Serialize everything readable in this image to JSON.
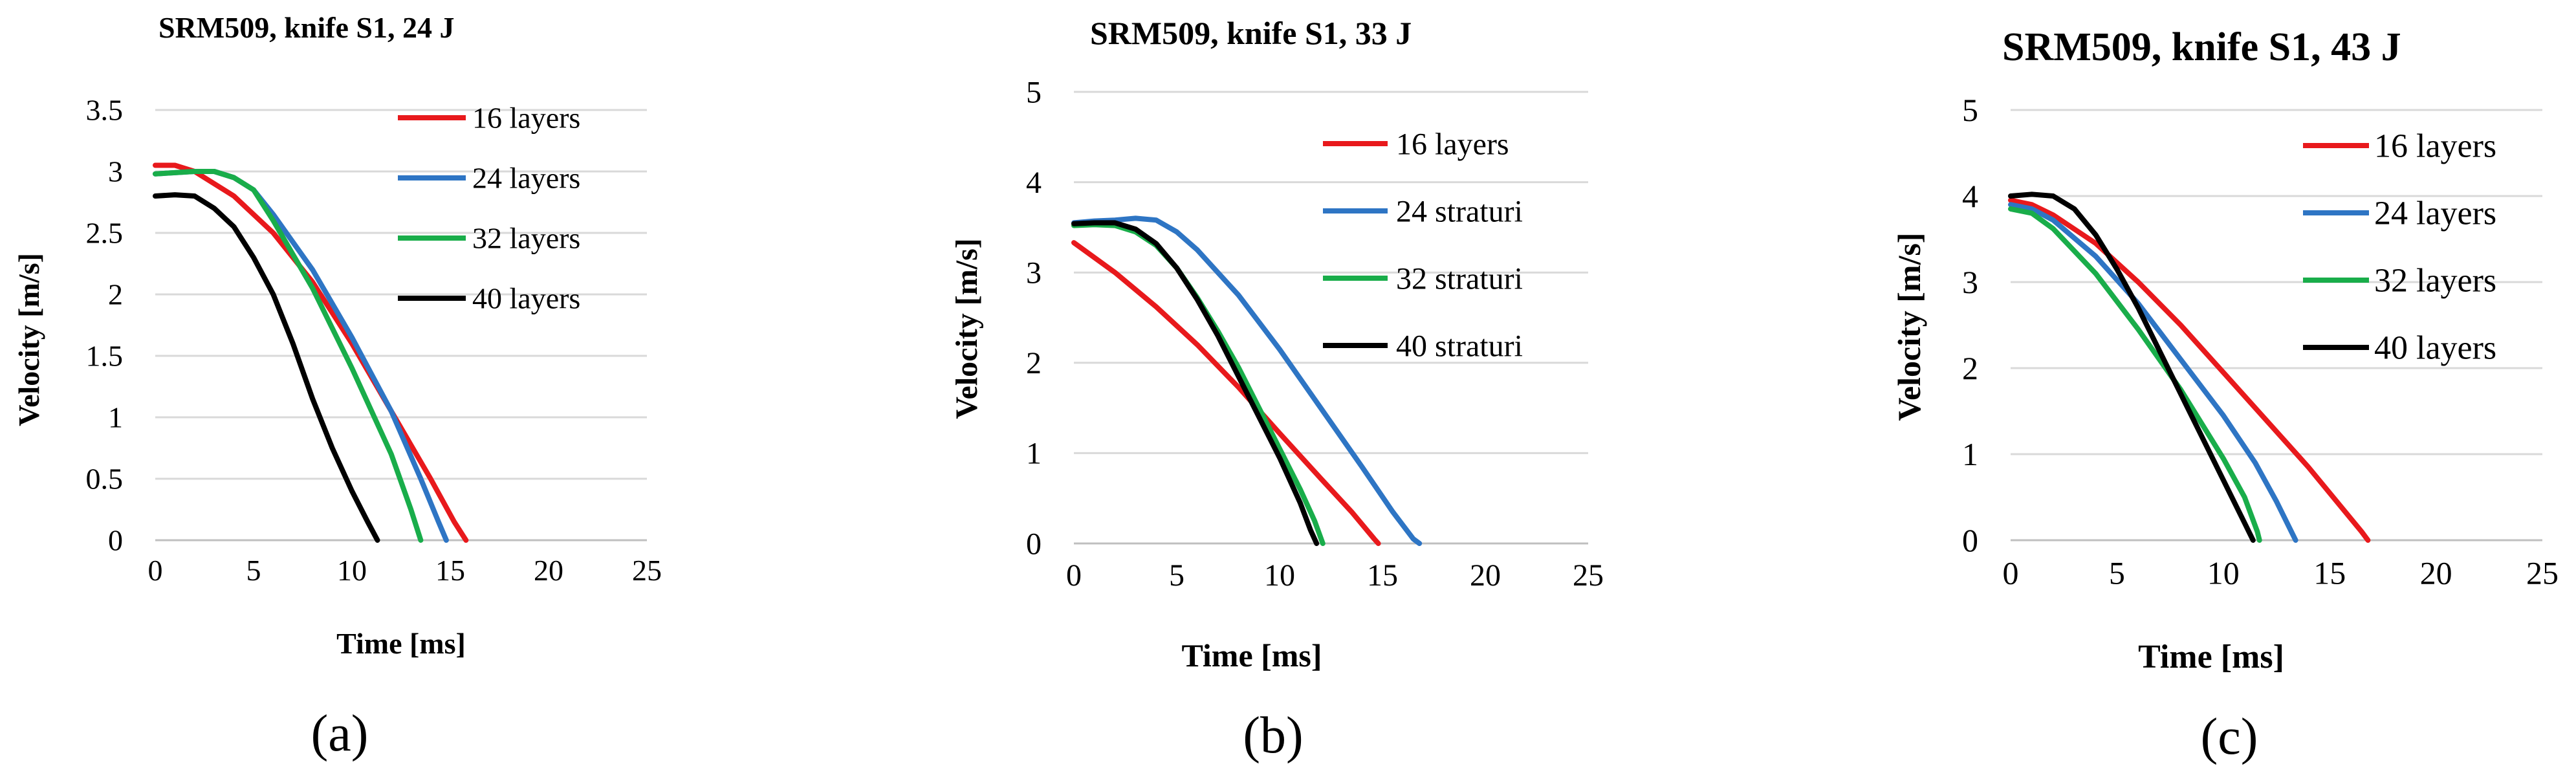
{
  "chart_data": [
    {
      "type": "line",
      "title": "SRM509, knife S1, 24 J",
      "xlabel": "Time [ms]",
      "ylabel": "Velocity [m/s]",
      "xlim": [
        0,
        25
      ],
      "ylim": [
        0,
        3.5
      ],
      "xticks": [
        "0",
        "5",
        "10",
        "15",
        "20",
        "25"
      ],
      "yticks": [
        "0",
        "0.5",
        "1",
        "1.5",
        "2",
        "2.5",
        "3",
        "3.5"
      ],
      "legend_position": "top-right",
      "panel_label": "(a)",
      "series": [
        {
          "name": "16 layers",
          "color": "#e8191c",
          "points": [
            [
              0,
              3.05
            ],
            [
              1,
              3.05
            ],
            [
              2,
              3.0
            ],
            [
              4,
              2.8
            ],
            [
              6,
              2.5
            ],
            [
              8,
              2.1
            ],
            [
              10,
              1.6
            ],
            [
              12,
              1.05
            ],
            [
              14,
              0.5
            ],
            [
              15.2,
              0.15
            ],
            [
              15.8,
              0
            ]
          ]
        },
        {
          "name": "24 layers",
          "color": "#2e75c4",
          "points": [
            [
              0,
              2.98
            ],
            [
              1,
              2.99
            ],
            [
              2,
              3.0
            ],
            [
              3,
              3.0
            ],
            [
              4,
              2.95
            ],
            [
              5,
              2.85
            ],
            [
              6,
              2.65
            ],
            [
              8,
              2.2
            ],
            [
              10,
              1.65
            ],
            [
              12,
              1.05
            ],
            [
              13.5,
              0.5
            ],
            [
              14.4,
              0.15
            ],
            [
              14.8,
              0
            ]
          ]
        },
        {
          "name": "32 layers",
          "color": "#19ad4a",
          "points": [
            [
              0,
              2.98
            ],
            [
              1,
              2.99
            ],
            [
              2,
              3.0
            ],
            [
              3,
              3.0
            ],
            [
              4,
              2.95
            ],
            [
              5,
              2.85
            ],
            [
              6,
              2.6
            ],
            [
              8,
              2.05
            ],
            [
              10,
              1.4
            ],
            [
              12,
              0.7
            ],
            [
              13,
              0.25
            ],
            [
              13.5,
              0
            ]
          ]
        },
        {
          "name": "40 layers",
          "color": "#000000",
          "points": [
            [
              0,
              2.8
            ],
            [
              1,
              2.81
            ],
            [
              2,
              2.8
            ],
            [
              3,
              2.7
            ],
            [
              4,
              2.55
            ],
            [
              5,
              2.3
            ],
            [
              6,
              2.0
            ],
            [
              7,
              1.6
            ],
            [
              8,
              1.15
            ],
            [
              9,
              0.75
            ],
            [
              10,
              0.4
            ],
            [
              10.8,
              0.15
            ],
            [
              11.3,
              0
            ]
          ]
        }
      ]
    },
    {
      "type": "line",
      "title": "SRM509, knife S1, 33 J",
      "xlabel": "Time [ms]",
      "ylabel": "Velocity [m/s]",
      "xlim": [
        0,
        25
      ],
      "ylim": [
        0,
        5
      ],
      "xticks": [
        "0",
        "5",
        "10",
        "15",
        "20",
        "25"
      ],
      "yticks": [
        "0",
        "1",
        "2",
        "3",
        "4",
        "5"
      ],
      "legend_position": "top-right",
      "panel_label": "(b)",
      "series": [
        {
          "name": "16 layers",
          "color": "#e8191c",
          "points": [
            [
              0,
              3.33
            ],
            [
              2,
              3.0
            ],
            [
              4,
              2.62
            ],
            [
              6,
              2.2
            ],
            [
              8,
              1.73
            ],
            [
              10,
              1.22
            ],
            [
              12,
              0.72
            ],
            [
              13.5,
              0.35
            ],
            [
              14.6,
              0.05
            ],
            [
              14.8,
              0
            ]
          ]
        },
        {
          "name": "24 straturi",
          "color": "#2e75c4",
          "points": [
            [
              0,
              3.55
            ],
            [
              1,
              3.57
            ],
            [
              2,
              3.58
            ],
            [
              3,
              3.6
            ],
            [
              4,
              3.58
            ],
            [
              5,
              3.45
            ],
            [
              6,
              3.25
            ],
            [
              8,
              2.75
            ],
            [
              10,
              2.15
            ],
            [
              12,
              1.5
            ],
            [
              14,
              0.85
            ],
            [
              15.5,
              0.35
            ],
            [
              16.5,
              0.05
            ],
            [
              16.8,
              0
            ]
          ]
        },
        {
          "name": "32 straturi",
          "color": "#19ad4a",
          "points": [
            [
              0,
              3.52
            ],
            [
              1,
              3.53
            ],
            [
              2,
              3.52
            ],
            [
              3,
              3.45
            ],
            [
              4,
              3.3
            ],
            [
              5,
              3.05
            ],
            [
              6,
              2.72
            ],
            [
              7,
              2.35
            ],
            [
              8,
              1.95
            ],
            [
              9,
              1.5
            ],
            [
              10,
              1.05
            ],
            [
              11,
              0.6
            ],
            [
              11.7,
              0.25
            ],
            [
              12.1,
              0
            ]
          ]
        },
        {
          "name": "40 straturi",
          "color": "#000000",
          "points": [
            [
              0,
              3.54
            ],
            [
              1,
              3.55
            ],
            [
              2,
              3.55
            ],
            [
              3,
              3.48
            ],
            [
              4,
              3.32
            ],
            [
              5,
              3.05
            ],
            [
              6,
              2.7
            ],
            [
              7,
              2.3
            ],
            [
              8,
              1.85
            ],
            [
              9,
              1.4
            ],
            [
              10,
              0.95
            ],
            [
              11,
              0.45
            ],
            [
              11.5,
              0.15
            ],
            [
              11.8,
              0
            ]
          ]
        }
      ]
    },
    {
      "type": "line",
      "title": "SRM509, knife S1, 43 J",
      "xlabel": "Time [ms]",
      "ylabel": "Velocity [m/s]",
      "xlim": [
        0,
        25
      ],
      "ylim": [
        0,
        5
      ],
      "xticks": [
        "0",
        "5",
        "10",
        "15",
        "20",
        "25"
      ],
      "yticks": [
        "0",
        "1",
        "2",
        "3",
        "4",
        "5"
      ],
      "legend_position": "top-right",
      "panel_label": "(c)",
      "series": [
        {
          "name": "16 layers",
          "color": "#e8191c",
          "points": [
            [
              0,
              3.95
            ],
            [
              1,
              3.9
            ],
            [
              2,
              3.78
            ],
            [
              4,
              3.45
            ],
            [
              6,
              3.0
            ],
            [
              8,
              2.5
            ],
            [
              10,
              1.95
            ],
            [
              12,
              1.4
            ],
            [
              14,
              0.85
            ],
            [
              15.5,
              0.4
            ],
            [
              16.5,
              0.1
            ],
            [
              16.8,
              0
            ]
          ]
        },
        {
          "name": "24 layers",
          "color": "#2e75c4",
          "points": [
            [
              0,
              3.9
            ],
            [
              1,
              3.85
            ],
            [
              2,
              3.72
            ],
            [
              4,
              3.3
            ],
            [
              6,
              2.75
            ],
            [
              8,
              2.1
            ],
            [
              10,
              1.45
            ],
            [
              11.5,
              0.9
            ],
            [
              12.5,
              0.45
            ],
            [
              13.2,
              0.1
            ],
            [
              13.4,
              0
            ]
          ]
        },
        {
          "name": "32 layers",
          "color": "#19ad4a",
          "points": [
            [
              0,
              3.85
            ],
            [
              1,
              3.8
            ],
            [
              2,
              3.62
            ],
            [
              4,
              3.1
            ],
            [
              6,
              2.45
            ],
            [
              8,
              1.75
            ],
            [
              9,
              1.35
            ],
            [
              10,
              0.95
            ],
            [
              11,
              0.5
            ],
            [
              11.6,
              0.1
            ],
            [
              11.7,
              0
            ]
          ]
        },
        {
          "name": "40 layers",
          "color": "#000000",
          "points": [
            [
              0,
              4.0
            ],
            [
              1,
              4.02
            ],
            [
              2,
              4.0
            ],
            [
              3,
              3.85
            ],
            [
              4,
              3.55
            ],
            [
              5,
              3.15
            ],
            [
              6,
              2.7
            ],
            [
              7,
              2.2
            ],
            [
              8,
              1.7
            ],
            [
              9,
              1.2
            ],
            [
              10,
              0.7
            ],
            [
              11,
              0.2
            ],
            [
              11.4,
              0
            ]
          ]
        }
      ]
    }
  ]
}
